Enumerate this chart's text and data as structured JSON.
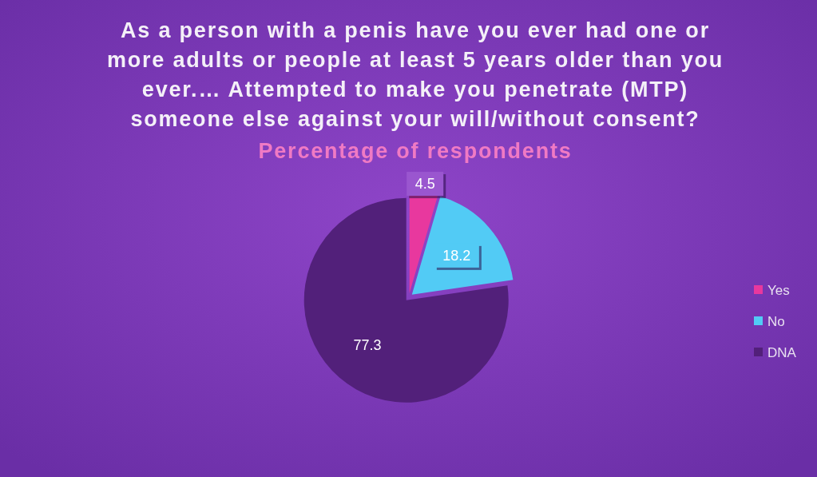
{
  "chart_data": {
    "type": "pie",
    "title": "As a person with a penis have you ever had one or more adults or people at least 5 years older than you ever.… Attempted to make you penetrate (MTP) someone else against your will/without consent?",
    "subtitle": "Percentage of respondents",
    "categories": [
      "Yes",
      "No",
      "DNA"
    ],
    "values": [
      4.5,
      18.2,
      77.3
    ],
    "colors": [
      "#e8389e",
      "#52cbf5",
      "#52207a"
    ],
    "data_labels": true,
    "legend": "right"
  }
}
